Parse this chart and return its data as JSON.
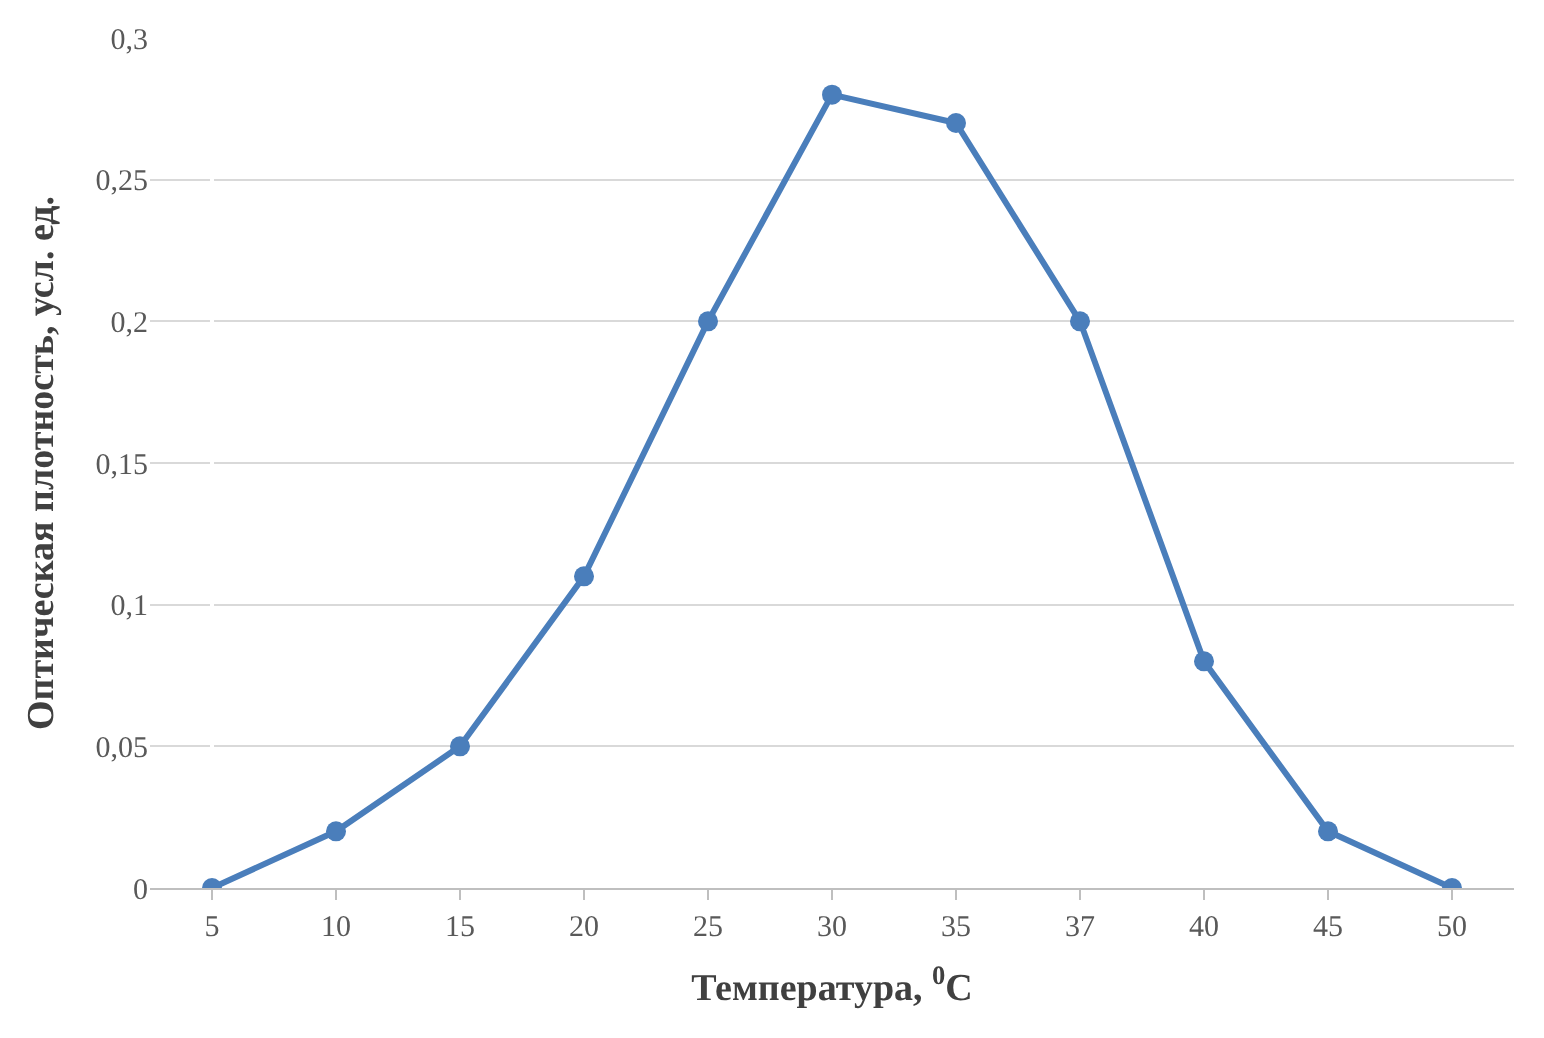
{
  "chart_data": {
    "type": "line",
    "xlabel": "Температура, $^{0}$C",
    "ylabel": "Оптическая плотность, усл. ед.",
    "categories": [
      "5",
      "10",
      "15",
      "20",
      "25",
      "30",
      "35",
      "37",
      "40",
      "45",
      "50"
    ],
    "series": [
      {
        "color": "#4a7ebb",
        "values": [
          0,
          0.02,
          0.05,
          0.11,
          0.2,
          0.28,
          0.27,
          0.2,
          0.08,
          0.02,
          0
        ]
      }
    ],
    "ylim": [
      0,
      0.3
    ],
    "yticks": [
      {
        "value": 0,
        "label": "0"
      },
      {
        "value": 0.05,
        "label": "0,05"
      },
      {
        "value": 0.1,
        "label": "0,1"
      },
      {
        "value": 0.15,
        "label": "0,15"
      },
      {
        "value": 0.2,
        "label": "0,2"
      },
      {
        "value": 0.25,
        "label": "0,25"
      },
      {
        "value": 0.3,
        "label": "0,3"
      }
    ],
    "grid": "y",
    "marker": "circle",
    "line_style": "solid"
  }
}
